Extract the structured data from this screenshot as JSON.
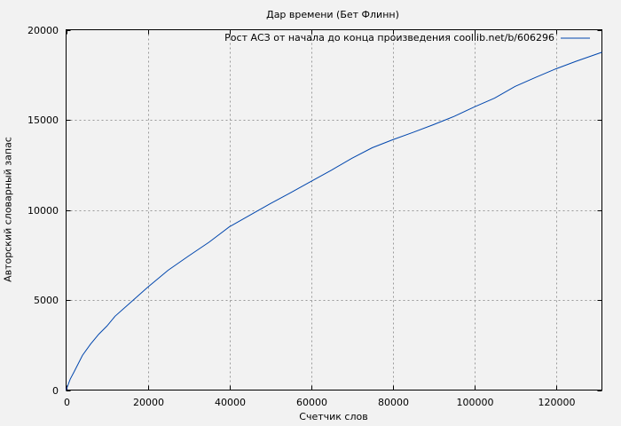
{
  "chart_data": {
    "type": "line",
    "title": "Дар времени (Бет Флинн)",
    "xlabel": "Счетчик слов",
    "ylabel": "Авторский словарный запас",
    "xlim": [
      0,
      131300
    ],
    "ylim": [
      0,
      20000
    ],
    "xticks": [
      "0",
      "20000",
      "40000",
      "60000",
      "80000",
      "100000",
      "120000"
    ],
    "xtick_values": [
      0,
      20000,
      40000,
      60000,
      80000,
      100000,
      120000
    ],
    "yticks": [
      "0",
      "5000",
      "10000",
      "15000",
      "20000"
    ],
    "ytick_values": [
      0,
      5000,
      10000,
      15000,
      20000
    ],
    "grid": true,
    "legend_position": "top-right",
    "series": [
      {
        "name": "Рост АСЗ от начала до конца произведения coollib.net/b/606296",
        "color": "#0046ad",
        "x": [
          0,
          1000,
          2000,
          4000,
          6000,
          8000,
          10000,
          12000,
          16000,
          20000,
          25000,
          30000,
          35000,
          40000,
          45000,
          50000,
          55000,
          60000,
          65000,
          70000,
          75000,
          80000,
          85000,
          90000,
          95000,
          100000,
          105000,
          110000,
          115000,
          120000,
          125000,
          131300
        ],
        "y": [
          0,
          600,
          1030,
          1920,
          2550,
          3100,
          3550,
          4100,
          4900,
          5710,
          6650,
          7440,
          8200,
          9060,
          9700,
          10340,
          10950,
          11580,
          12200,
          12860,
          13450,
          13890,
          14300,
          14730,
          15180,
          15710,
          16200,
          16850,
          17350,
          17830,
          18250,
          18750
        ]
      }
    ]
  }
}
